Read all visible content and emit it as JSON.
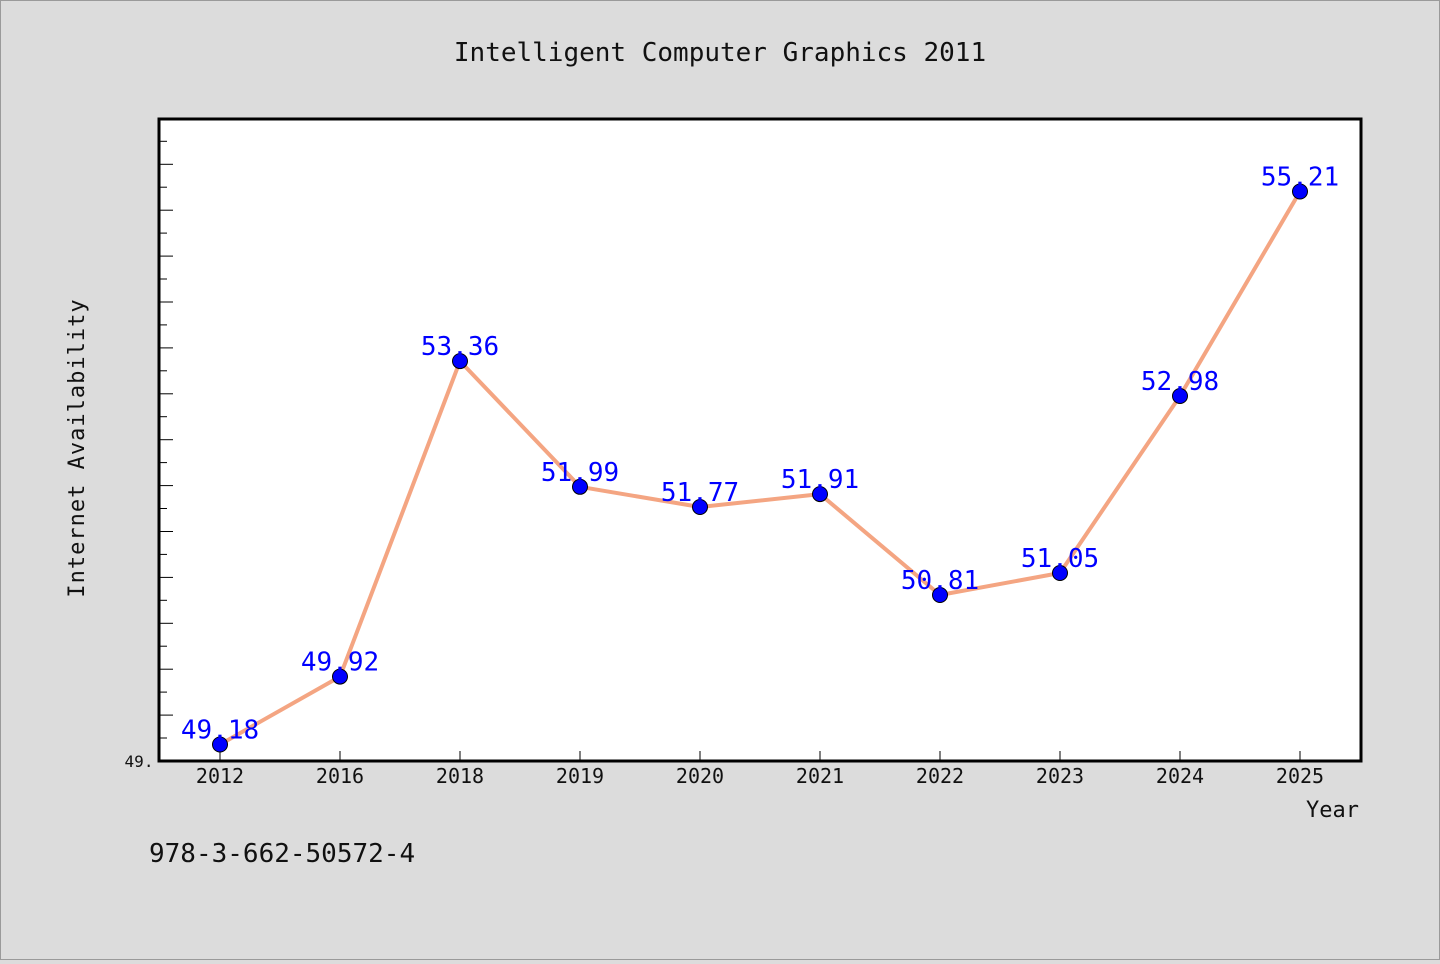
{
  "chart_data": {
    "type": "line",
    "title": "Intelligent Computer Graphics 2011",
    "xlabel": "Year",
    "ylabel": "Internet Availability",
    "categories": [
      "2012",
      "2016",
      "2018",
      "2019",
      "2020",
      "2021",
      "2022",
      "2023",
      "2024",
      "2025"
    ],
    "series": [
      {
        "values": [
          49.18,
          49.92,
          53.36,
          51.99,
          51.77,
          51.91,
          50.81,
          51.05,
          52.98,
          55.21
        ]
      }
    ],
    "data_labels": [
      "49.18",
      "49.92",
      "53.36",
      "51.99",
      "51.77",
      "51.91",
      "50.81",
      "51.05",
      "52.98",
      "55.21"
    ],
    "ylim": [
      49.0,
      56.0
    ],
    "y_tick_label": "49.",
    "grid": false,
    "legend": "none",
    "colors": {
      "line": "#f4a582",
      "marker": "#0000ff",
      "data_label": "#0000ff",
      "plot_background": "#ffffff",
      "page_background": "#dcdcdc"
    }
  },
  "footer_text": "978-3-662-50572-4"
}
